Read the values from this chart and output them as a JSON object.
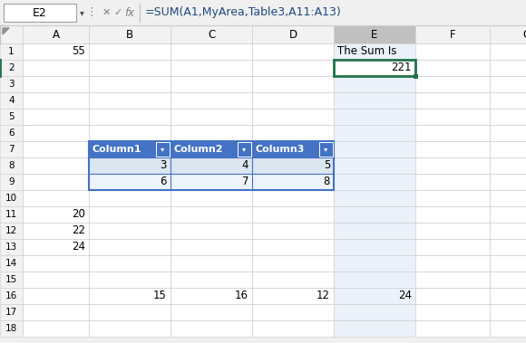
{
  "formula_bar_cell": "E2",
  "formula_bar_formula": "=SUM(A1,MyArea,Table3,A11:A13)",
  "columns": [
    "A",
    "B",
    "C",
    "D",
    "E",
    "F",
    "G"
  ],
  "num_rows": 18,
  "cells": {
    "A1": {
      "value": "55",
      "align": "right"
    },
    "E1": {
      "value": "The Sum Is",
      "align": "left"
    },
    "E2": {
      "value": "221",
      "align": "right",
      "selected": true
    },
    "B7": {
      "value": "Column1",
      "align": "left",
      "bg": "#4472C4",
      "fg": "#FFFFFF",
      "bold": true,
      "dropdown": true
    },
    "C7": {
      "value": "Column2",
      "align": "left",
      "bg": "#4472C4",
      "fg": "#FFFFFF",
      "bold": true,
      "dropdown": true
    },
    "D7": {
      "value": "Column3",
      "align": "left",
      "bg": "#4472C4",
      "fg": "#FFFFFF",
      "bold": true,
      "dropdown": true
    },
    "B8": {
      "value": "3",
      "align": "right",
      "bg": "#DCE6F1"
    },
    "C8": {
      "value": "4",
      "align": "right",
      "bg": "#DCE6F1"
    },
    "D8": {
      "value": "5",
      "align": "right",
      "bg": "#DCE6F1"
    },
    "B9": {
      "value": "6",
      "align": "right",
      "bg": "#EEF4FB"
    },
    "C9": {
      "value": "7",
      "align": "right",
      "bg": "#EEF4FB"
    },
    "D9": {
      "value": "8",
      "align": "right",
      "bg": "#EEF4FB"
    },
    "A11": {
      "value": "20",
      "align": "right"
    },
    "A12": {
      "value": "22",
      "align": "right"
    },
    "A13": {
      "value": "24",
      "align": "right"
    },
    "B16": {
      "value": "15",
      "align": "right"
    },
    "C16": {
      "value": "16",
      "align": "right"
    },
    "D16": {
      "value": "12",
      "align": "right"
    },
    "E16": {
      "value": "24",
      "align": "right"
    }
  },
  "selected_col": "E",
  "selected_col_header_bg": "#C0C0C0",
  "selected_col_bg": "#E9F2FB",
  "table_col_border": "#4472C4",
  "table_bg_row8": "#DCE6F1",
  "table_bg_row9": "#EEF4FB",
  "grid_color": "#D4D4D4",
  "row_header_bg": "#F2F2F2",
  "col_header_bg": "#F2F2F2",
  "selected_cell_border": "#217346",
  "cell_bg": "#FFFFFF",
  "formula_bg": "#F0F0F0",
  "font_size_cell": 8.5,
  "font_size_header": 8.5,
  "font_size_formula": 9.0
}
